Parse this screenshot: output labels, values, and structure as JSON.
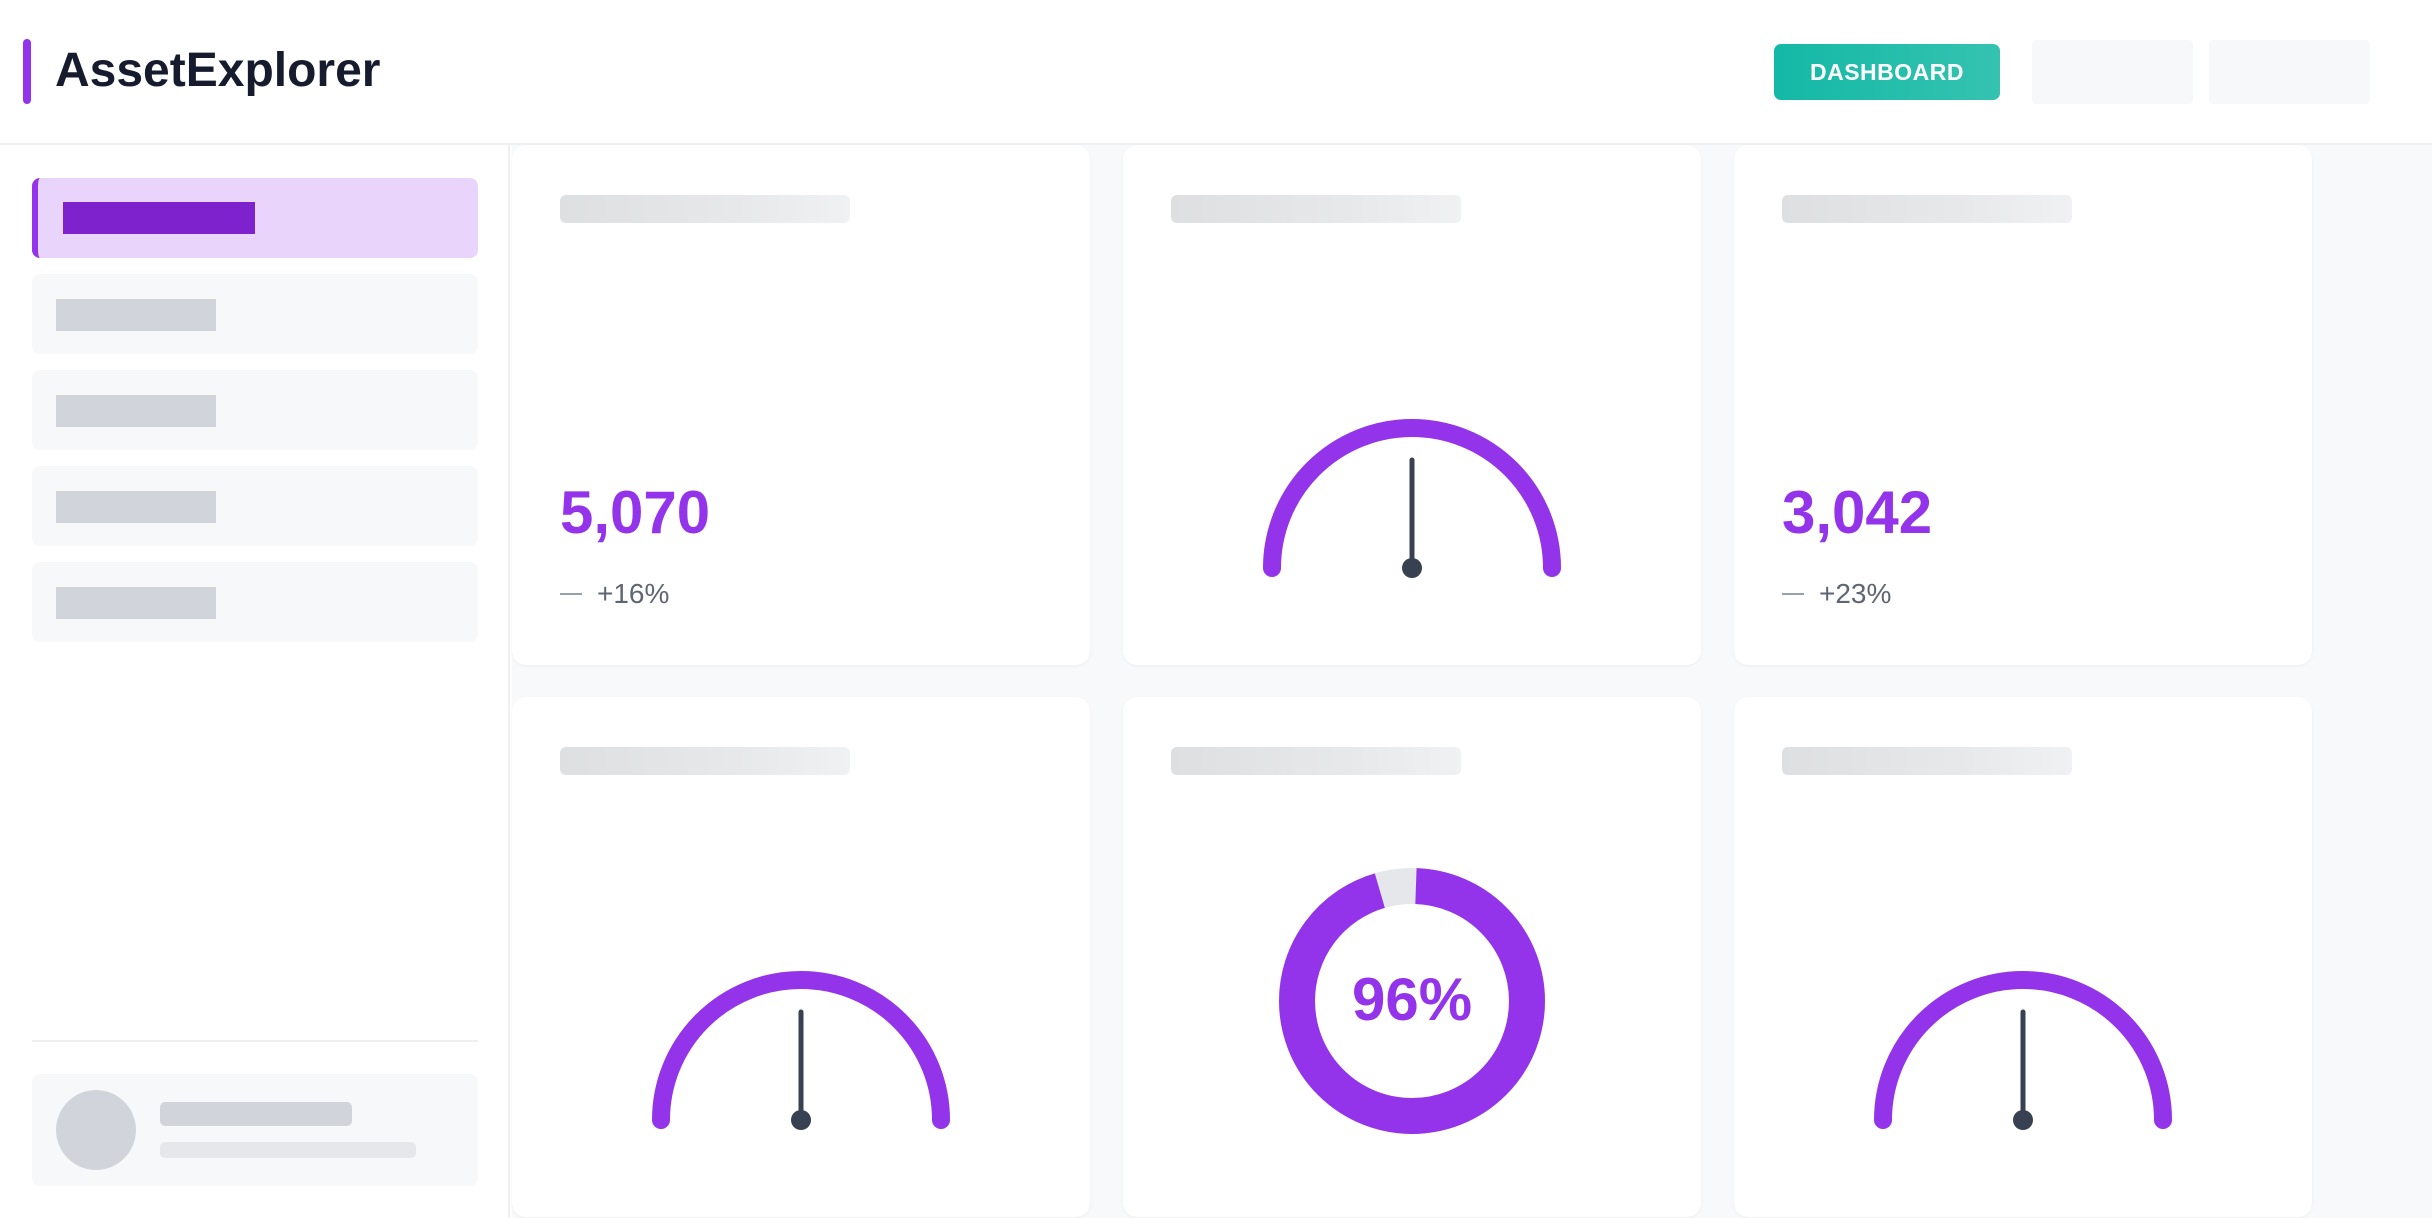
{
  "app": {
    "title": "AssetExplorer"
  },
  "header": {
    "nav": [
      {
        "label": "DASHBOARD",
        "active": true
      },
      {
        "label": "",
        "active": false
      },
      {
        "label": "",
        "active": false
      }
    ]
  },
  "colors": {
    "accent": "#9333ea",
    "accent_dark": "#7e22ce",
    "teal": "#14b8a6",
    "needle": "#374151",
    "track": "#e5e7eb"
  },
  "cards": {
    "stat_a": {
      "value": "5,070",
      "change": "+16%"
    },
    "stat_b": {
      "value": "3,042",
      "change": "+23%"
    },
    "donut": {
      "label": "96%",
      "percent": 96
    }
  }
}
